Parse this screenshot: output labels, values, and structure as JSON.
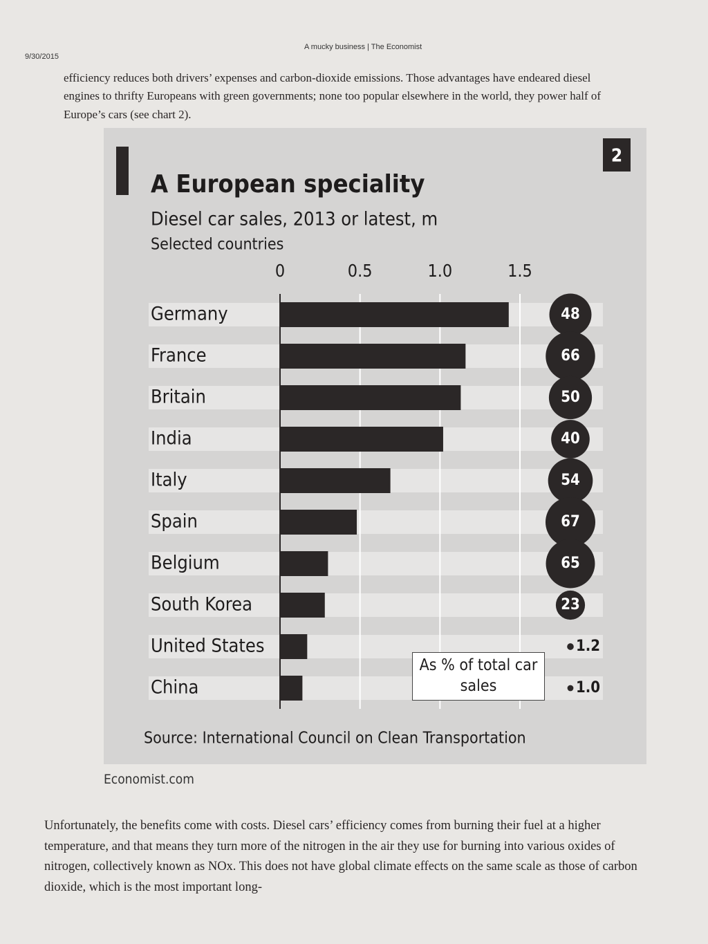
{
  "header": {
    "date": "9/30/2015",
    "running_title": "A mucky business | The Economist"
  },
  "paragraphs": [
    "efficiency reduces both drivers’ expenses and carbon-dioxide emissions. Those advantages have endeared diesel engines to thrifty Europeans with green governments; none too popular elsewhere in the world, they power half of Europe’s cars (see chart 2).",
    "Unfortunately, the benefits come with costs. Diesel cars’ efficiency comes from burning their fuel at a higher temperature, and that means they turn more of the nitrogen in the air they use for burning into various oxides of nitrogen, collectively known as NOx. This does not have global climate effects on the same scale as those of carbon dioxide, which is the most important long-"
  ],
  "credit": "Economist.com",
  "chart_data": {
    "type": "bar",
    "orientation": "horizontal",
    "chart_number": "2",
    "title": "A European speciality",
    "subtitle": "Diesel car sales, 2013 or latest, m",
    "note": "Selected countries",
    "categories": [
      "Germany",
      "France",
      "Britain",
      "India",
      "Italy",
      "Spain",
      "Belgium",
      "South Korea",
      "United States",
      "China"
    ],
    "values": [
      1.43,
      1.16,
      1.13,
      1.02,
      0.69,
      0.48,
      0.3,
      0.28,
      0.17,
      0.14
    ],
    "color": "#2b2727",
    "xlim": [
      0,
      1.5
    ],
    "xticks": [
      0,
      0.5,
      {
        "value": 1,
        "label": "1.0"
      },
      1.5
    ],
    "grid": true,
    "share": {
      "values": [
        48,
        66,
        50,
        40,
        54,
        67,
        65,
        23,
        1.2,
        1.0
      ],
      "value_labels": [
        "48",
        "66",
        "50",
        "40",
        "54",
        "67",
        "65",
        "23",
        "1.2",
        "1.0"
      ],
      "color": "#2b2727"
    },
    "annotation": "As % of total car sales",
    "source": "Source: International Council on Clean Transportation"
  }
}
